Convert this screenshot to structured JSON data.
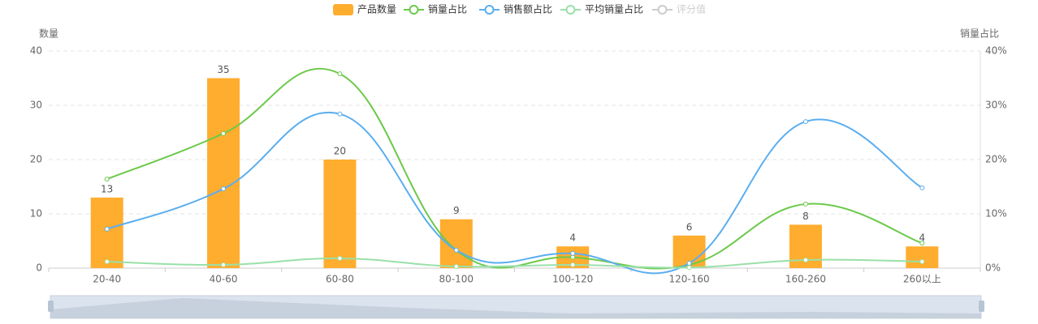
{
  "chart_data": {
    "type": "bar",
    "categories": [
      "20-40",
      "40-60",
      "60-80",
      "80-100",
      "100-120",
      "120-160",
      "160-260",
      "260以上"
    ],
    "y_label": "数量",
    "y2_label": "销量占比",
    "ylim": [
      0,
      40
    ],
    "yticks": [
      0,
      10,
      20,
      30,
      40
    ],
    "y2lim": [
      0,
      40
    ],
    "y2ticks": [
      {
        "value": 0,
        "label": "0%"
      },
      {
        "value": 10,
        "label": "10%"
      },
      {
        "value": 20,
        "label": "20%"
      },
      {
        "value": 30,
        "label": "30%"
      },
      {
        "value": 40,
        "label": "40%"
      }
    ],
    "grid": true,
    "series": [
      {
        "name": "产品数量",
        "type": "bar",
        "color": "#ffad2f",
        "values": [
          13,
          35,
          20,
          9,
          4,
          6,
          8,
          4
        ]
      },
      {
        "name": "销量占比",
        "type": "line",
        "axis": "y2",
        "color": "#6bc94a",
        "values": [
          16.4,
          24.8,
          35.8,
          3.3,
          2,
          0.6,
          11.8,
          4.6
        ]
      },
      {
        "name": "销售额占比",
        "type": "line",
        "axis": "y2",
        "color": "#5aaef0",
        "values": [
          7.2,
          14.6,
          28.4,
          3.3,
          2.7,
          0.9,
          27,
          14.8
        ]
      },
      {
        "name": "平均销量占比",
        "type": "line",
        "axis": "y2",
        "color": "#99e0a8",
        "values": [
          1.2,
          0.6,
          1.8,
          0.3,
          0.6,
          0.1,
          1.5,
          1.2
        ]
      },
      {
        "name": "评分值",
        "type": "line",
        "axis": "y2",
        "color": "#cccccc",
        "hidden": true
      }
    ]
  }
}
